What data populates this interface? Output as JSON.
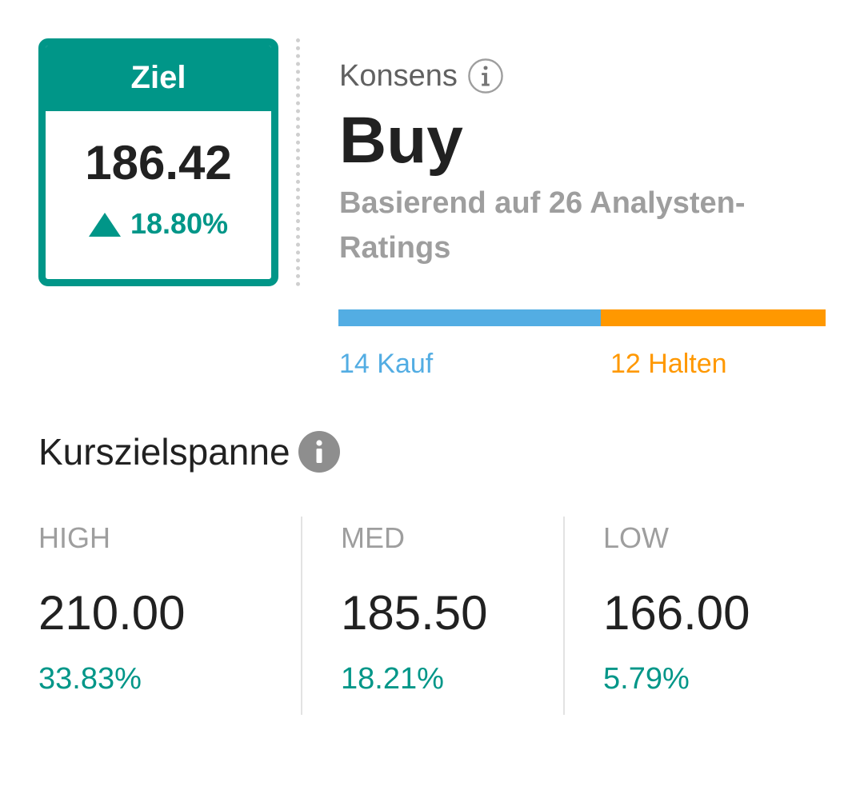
{
  "target": {
    "header": "Ziel",
    "value": "186.42",
    "change": "18.80%",
    "change_direction_icon": "up-triangle-icon",
    "color": "#009688"
  },
  "consensus": {
    "label": "Konsens",
    "info_icon": "info-outline-icon",
    "value": "Buy",
    "subtitle": "Basierend auf 26 Analysten-Ratings"
  },
  "ratings": {
    "buy": {
      "count": 14,
      "label": "14 Kauf",
      "color": "#53ade3"
    },
    "hold": {
      "count": 12,
      "label": "12 Halten",
      "color": "#ff9800"
    }
  },
  "range": {
    "title": "Kurszielspanne",
    "info_icon": "info-filled-icon",
    "columns": [
      {
        "label": "HIGH",
        "value": "210.00",
        "pct": "33.83%"
      },
      {
        "label": "MED",
        "value": "185.50",
        "pct": "18.21%"
      },
      {
        "label": "LOW",
        "value": "166.00",
        "pct": "5.79%"
      }
    ],
    "positive_color": "#009688"
  }
}
